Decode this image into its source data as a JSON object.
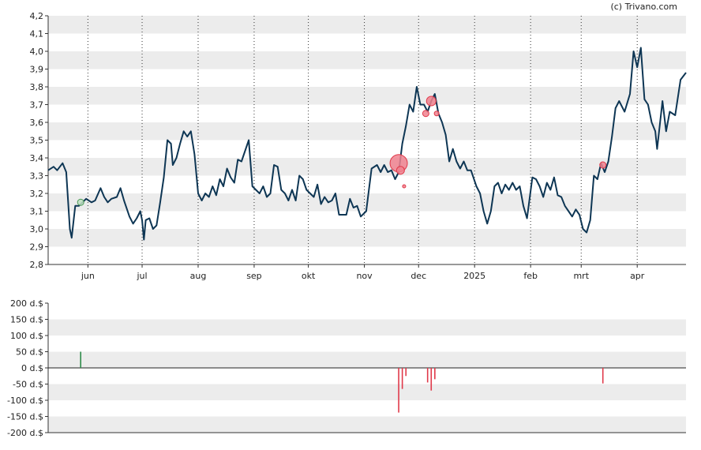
{
  "credit": "(c) Trivano.com",
  "chart_data": [
    {
      "type": "line",
      "ylim": [
        2.8,
        4.2
      ],
      "yticks": [
        "2,8",
        "2,9",
        "3,0",
        "3,1",
        "3,2",
        "3,3",
        "3,4",
        "3,5",
        "3,6",
        "3,7",
        "3,8",
        "3,9",
        "4,0",
        "4,1",
        "4,2"
      ],
      "ytick_values": [
        2.8,
        2.9,
        3.0,
        3.1,
        3.2,
        3.3,
        3.4,
        3.5,
        3.6,
        3.7,
        3.8,
        3.9,
        4.0,
        4.1,
        4.2
      ],
      "x_domain": [
        "2024-05-10",
        "2025-04-28"
      ],
      "months": [
        {
          "label": "jun",
          "date": "2024-06-01"
        },
        {
          "label": "jul",
          "date": "2024-07-01"
        },
        {
          "label": "aug",
          "date": "2024-08-01"
        },
        {
          "label": "sep",
          "date": "2024-09-01"
        },
        {
          "label": "okt",
          "date": "2024-10-01"
        },
        {
          "label": "nov",
          "date": "2024-11-01"
        },
        {
          "label": "dec",
          "date": "2024-12-01"
        },
        {
          "label": "2025",
          "date": "2025-01-01"
        },
        {
          "label": "feb",
          "date": "2025-02-01"
        },
        {
          "label": "mrt",
          "date": "2025-03-01"
        },
        {
          "label": "apr",
          "date": "2025-04-01"
        }
      ],
      "line_color": "#0e3654",
      "series": [
        {
          "points": [
            [
              "2024-05-10",
              3.33
            ],
            [
              "2024-05-13",
              3.35
            ],
            [
              "2024-05-15",
              3.33
            ],
            [
              "2024-05-18",
              3.37
            ],
            [
              "2024-05-20",
              3.32
            ],
            [
              "2024-05-22",
              3.0
            ],
            [
              "2024-05-23",
              2.95
            ],
            [
              "2024-05-25",
              3.13
            ],
            [
              "2024-05-27",
              3.13
            ],
            [
              "2024-05-29",
              3.15
            ],
            [
              "2024-05-31",
              3.17
            ],
            [
              "2024-06-03",
              3.15
            ],
            [
              "2024-06-05",
              3.16
            ],
            [
              "2024-06-08",
              3.23
            ],
            [
              "2024-06-10",
              3.18
            ],
            [
              "2024-06-12",
              3.15
            ],
            [
              "2024-06-14",
              3.17
            ],
            [
              "2024-06-17",
              3.18
            ],
            [
              "2024-06-19",
              3.23
            ],
            [
              "2024-06-21",
              3.16
            ],
            [
              "2024-06-24",
              3.07
            ],
            [
              "2024-06-26",
              3.03
            ],
            [
              "2024-06-28",
              3.06
            ],
            [
              "2024-06-30",
              3.1
            ],
            [
              "2024-07-01",
              3.05
            ],
            [
              "2024-07-02",
              2.94
            ],
            [
              "2024-07-03",
              3.05
            ],
            [
              "2024-07-05",
              3.06
            ],
            [
              "2024-07-07",
              3.0
            ],
            [
              "2024-07-09",
              3.02
            ],
            [
              "2024-07-11",
              3.15
            ],
            [
              "2024-07-13",
              3.29
            ],
            [
              "2024-07-15",
              3.5
            ],
            [
              "2024-07-17",
              3.48
            ],
            [
              "2024-07-18",
              3.36
            ],
            [
              "2024-07-20",
              3.4
            ],
            [
              "2024-07-22",
              3.48
            ],
            [
              "2024-07-24",
              3.55
            ],
            [
              "2024-07-26",
              3.52
            ],
            [
              "2024-07-28",
              3.55
            ],
            [
              "2024-07-30",
              3.42
            ],
            [
              "2024-08-01",
              3.2
            ],
            [
              "2024-08-03",
              3.16
            ],
            [
              "2024-08-05",
              3.2
            ],
            [
              "2024-08-07",
              3.18
            ],
            [
              "2024-08-09",
              3.24
            ],
            [
              "2024-08-11",
              3.19
            ],
            [
              "2024-08-13",
              3.28
            ],
            [
              "2024-08-15",
              3.24
            ],
            [
              "2024-08-17",
              3.34
            ],
            [
              "2024-08-19",
              3.29
            ],
            [
              "2024-08-21",
              3.26
            ],
            [
              "2024-08-23",
              3.39
            ],
            [
              "2024-08-25",
              3.38
            ],
            [
              "2024-08-27",
              3.44
            ],
            [
              "2024-08-29",
              3.5
            ],
            [
              "2024-08-31",
              3.24
            ],
            [
              "2024-09-02",
              3.22
            ],
            [
              "2024-09-04",
              3.2
            ],
            [
              "2024-09-06",
              3.24
            ],
            [
              "2024-09-08",
              3.18
            ],
            [
              "2024-09-10",
              3.2
            ],
            [
              "2024-09-12",
              3.36
            ],
            [
              "2024-09-14",
              3.35
            ],
            [
              "2024-09-16",
              3.22
            ],
            [
              "2024-09-18",
              3.2
            ],
            [
              "2024-09-20",
              3.16
            ],
            [
              "2024-09-22",
              3.22
            ],
            [
              "2024-09-24",
              3.16
            ],
            [
              "2024-09-26",
              3.3
            ],
            [
              "2024-09-28",
              3.28
            ],
            [
              "2024-09-30",
              3.22
            ],
            [
              "2024-10-02",
              3.2
            ],
            [
              "2024-10-04",
              3.18
            ],
            [
              "2024-10-06",
              3.25
            ],
            [
              "2024-10-08",
              3.14
            ],
            [
              "2024-10-10",
              3.18
            ],
            [
              "2024-10-12",
              3.15
            ],
            [
              "2024-10-14",
              3.16
            ],
            [
              "2024-10-16",
              3.2
            ],
            [
              "2024-10-18",
              3.08
            ],
            [
              "2024-10-20",
              3.08
            ],
            [
              "2024-10-22",
              3.08
            ],
            [
              "2024-10-24",
              3.17
            ],
            [
              "2024-10-26",
              3.12
            ],
            [
              "2024-10-28",
              3.13
            ],
            [
              "2024-10-30",
              3.07
            ],
            [
              "2024-11-02",
              3.1
            ],
            [
              "2024-11-05",
              3.34
            ],
            [
              "2024-11-08",
              3.36
            ],
            [
              "2024-11-10",
              3.32
            ],
            [
              "2024-11-12",
              3.36
            ],
            [
              "2024-11-14",
              3.32
            ],
            [
              "2024-11-16",
              3.33
            ],
            [
              "2024-11-18",
              3.28
            ],
            [
              "2024-11-20",
              3.32
            ],
            [
              "2024-11-22",
              3.48
            ],
            [
              "2024-11-24",
              3.58
            ],
            [
              "2024-11-26",
              3.7
            ],
            [
              "2024-11-28",
              3.66
            ],
            [
              "2024-11-30",
              3.8
            ],
            [
              "2024-12-02",
              3.7
            ],
            [
              "2024-12-04",
              3.7
            ],
            [
              "2024-12-06",
              3.66
            ],
            [
              "2024-12-08",
              3.72
            ],
            [
              "2024-12-10",
              3.76
            ],
            [
              "2024-12-12",
              3.65
            ],
            [
              "2024-12-14",
              3.6
            ],
            [
              "2024-12-16",
              3.53
            ],
            [
              "2024-12-18",
              3.38
            ],
            [
              "2024-12-20",
              3.45
            ],
            [
              "2024-12-22",
              3.38
            ],
            [
              "2024-12-24",
              3.34
            ],
            [
              "2024-12-26",
              3.38
            ],
            [
              "2024-12-28",
              3.33
            ],
            [
              "2024-12-30",
              3.33
            ],
            [
              "2025-01-02",
              3.24
            ],
            [
              "2025-01-04",
              3.2
            ],
            [
              "2025-01-06",
              3.1
            ],
            [
              "2025-01-08",
              3.03
            ],
            [
              "2025-01-10",
              3.1
            ],
            [
              "2025-01-12",
              3.24
            ],
            [
              "2025-01-14",
              3.26
            ],
            [
              "2025-01-16",
              3.2
            ],
            [
              "2025-01-18",
              3.25
            ],
            [
              "2025-01-20",
              3.22
            ],
            [
              "2025-01-22",
              3.26
            ],
            [
              "2025-01-24",
              3.22
            ],
            [
              "2025-01-26",
              3.24
            ],
            [
              "2025-01-28",
              3.13
            ],
            [
              "2025-01-30",
              3.06
            ],
            [
              "2025-02-02",
              3.29
            ],
            [
              "2025-02-04",
              3.28
            ],
            [
              "2025-02-06",
              3.24
            ],
            [
              "2025-02-08",
              3.18
            ],
            [
              "2025-02-10",
              3.26
            ],
            [
              "2025-02-12",
              3.22
            ],
            [
              "2025-02-14",
              3.29
            ],
            [
              "2025-02-16",
              3.19
            ],
            [
              "2025-02-18",
              3.18
            ],
            [
              "2025-02-20",
              3.13
            ],
            [
              "2025-02-22",
              3.1
            ],
            [
              "2025-02-24",
              3.07
            ],
            [
              "2025-02-26",
              3.11
            ],
            [
              "2025-02-28",
              3.08
            ],
            [
              "2025-03-02",
              3.0
            ],
            [
              "2025-03-04",
              2.98
            ],
            [
              "2025-03-06",
              3.05
            ],
            [
              "2025-03-08",
              3.3
            ],
            [
              "2025-03-10",
              3.28
            ],
            [
              "2025-03-12",
              3.37
            ],
            [
              "2025-03-14",
              3.32
            ],
            [
              "2025-03-16",
              3.38
            ],
            [
              "2025-03-18",
              3.52
            ],
            [
              "2025-03-20",
              3.68
            ],
            [
              "2025-03-22",
              3.72
            ],
            [
              "2025-03-25",
              3.66
            ],
            [
              "2025-03-28",
              3.76
            ],
            [
              "2025-03-30",
              4.0
            ],
            [
              "2025-04-01",
              3.91
            ],
            [
              "2025-04-03",
              4.02
            ],
            [
              "2025-04-05",
              3.73
            ],
            [
              "2025-04-07",
              3.7
            ],
            [
              "2025-04-09",
              3.6
            ],
            [
              "2025-04-11",
              3.55
            ],
            [
              "2025-04-12",
              3.45
            ],
            [
              "2025-04-15",
              3.72
            ],
            [
              "2025-04-17",
              3.55
            ],
            [
              "2025-04-19",
              3.66
            ],
            [
              "2025-04-22",
              3.64
            ],
            [
              "2025-04-25",
              3.84
            ],
            [
              "2025-04-28",
              3.88
            ]
          ]
        }
      ],
      "markers": [
        {
          "date": "2024-05-28",
          "value": 3.15,
          "color": "#4c9a56",
          "fill": "#bfdfc2",
          "size": 4
        },
        {
          "date": "2024-11-20",
          "value": 3.37,
          "color": "#e0394a",
          "fill": "#f0838f",
          "size": 11
        },
        {
          "date": "2024-11-21",
          "value": 3.33,
          "color": "#e0394a",
          "fill": "#f0838f",
          "size": 5
        },
        {
          "date": "2024-11-23",
          "value": 3.24,
          "color": "#e0394a",
          "fill": "#f0838f",
          "size": 2
        },
        {
          "date": "2024-12-05",
          "value": 3.65,
          "color": "#e0394a",
          "fill": "#f0838f",
          "size": 4
        },
        {
          "date": "2024-12-08",
          "value": 3.72,
          "color": "#e0394a",
          "fill": "#f0838f",
          "size": 6
        },
        {
          "date": "2024-12-11",
          "value": 3.65,
          "color": "#e0394a",
          "fill": "#f0838f",
          "size": 3
        },
        {
          "date": "2025-03-13",
          "value": 3.36,
          "color": "#e0394a",
          "fill": "#f0838f",
          "size": 4
        }
      ]
    },
    {
      "type": "bar",
      "ylim": [
        -200,
        200
      ],
      "yticks": [
        "200 d.$",
        "150 d.$",
        "100 d.$",
        "50 d.$",
        "0 d.$",
        "-50 d.$",
        "-100 d.$",
        "-150 d.$",
        "-200 d.$"
      ],
      "ytick_values": [
        200,
        150,
        100,
        50,
        0,
        -50,
        -100,
        -150,
        -200
      ],
      "x_domain": [
        "2024-05-10",
        "2025-04-28"
      ],
      "bars": [
        {
          "date": "2024-05-28",
          "value": 50,
          "color": "#2e8b4a"
        },
        {
          "date": "2024-11-20",
          "value": -138,
          "color": "#e0394a"
        },
        {
          "date": "2024-11-22",
          "value": -65,
          "color": "#e0394a"
        },
        {
          "date": "2024-11-24",
          "value": -25,
          "color": "#e0394a"
        },
        {
          "date": "2024-12-06",
          "value": -45,
          "color": "#e0394a"
        },
        {
          "date": "2024-12-08",
          "value": -70,
          "color": "#e0394a"
        },
        {
          "date": "2024-12-10",
          "value": -35,
          "color": "#e0394a"
        },
        {
          "date": "2025-03-13",
          "value": -48,
          "color": "#e0394a"
        }
      ]
    }
  ]
}
